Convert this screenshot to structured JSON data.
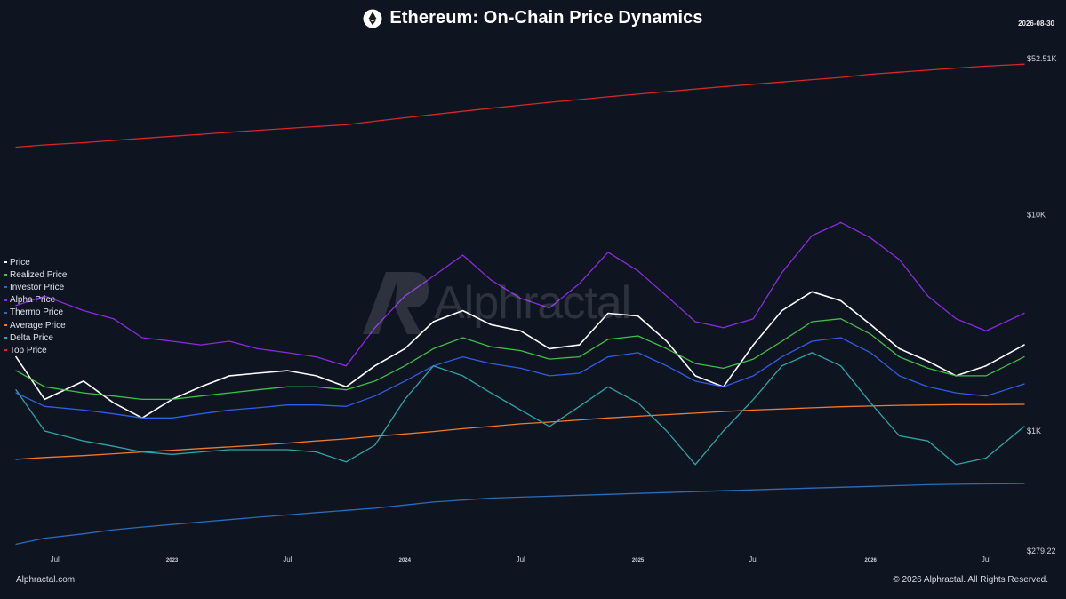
{
  "header": {
    "title": "Ethereum: On-Chain Price Dynamics",
    "date": "2026-08-30"
  },
  "watermark": "Alphractal",
  "footer": {
    "left": "Alphractal.com",
    "right": "© 2026 Alphractal. All Rights Reserved."
  },
  "legend": [
    {
      "label": "Price",
      "color": "#ffffff"
    },
    {
      "label": "Realized Price",
      "color": "#3fbf4a"
    },
    {
      "label": "Investor Price",
      "color": "#2f5fe6"
    },
    {
      "label": "Alpha Price",
      "color": "#8b2be2"
    },
    {
      "label": "Thermo Price",
      "color": "#2b6cb8"
    },
    {
      "label": "Average Price",
      "color": "#f07a2a"
    },
    {
      "label": "Delta Price",
      "color": "#2ba6a6"
    },
    {
      "label": "Top Price",
      "color": "#d62828"
    }
  ],
  "chart_data": {
    "type": "line",
    "yscale": "log",
    "ylim": [
      279.22,
      52510
    ],
    "xlim": [
      "2022-05-01",
      "2026-08-30"
    ],
    "y_ticks": [
      {
        "value": 52510,
        "label": "$52.51K"
      },
      {
        "value": 10000,
        "label": "$10K"
      },
      {
        "value": 1000,
        "label": "$1K"
      },
      {
        "value": 279.22,
        "label": "$279.22"
      }
    ],
    "x_ticks": [
      {
        "date": "2022-07-01",
        "label": "Jul"
      },
      {
        "date": "2023-01-01",
        "label": "2023"
      },
      {
        "date": "2023-07-01",
        "label": "Jul"
      },
      {
        "date": "2024-01-01",
        "label": "2024"
      },
      {
        "date": "2024-07-01",
        "label": "Jul"
      },
      {
        "date": "2025-01-01",
        "label": "2025"
      },
      {
        "date": "2025-07-01",
        "label": "Jul"
      },
      {
        "date": "2026-01-01",
        "label": "2026"
      },
      {
        "date": "2026-07-01",
        "label": "Jul"
      }
    ],
    "x_dates": [
      "2022-05-01",
      "2022-06-15",
      "2022-08-15",
      "2022-10-01",
      "2022-11-15",
      "2023-01-01",
      "2023-02-15",
      "2023-04-01",
      "2023-05-15",
      "2023-07-01",
      "2023-08-15",
      "2023-10-01",
      "2023-11-15",
      "2024-01-01",
      "2024-02-15",
      "2024-04-01",
      "2024-05-15",
      "2024-07-01",
      "2024-08-15",
      "2024-10-01",
      "2024-11-15",
      "2025-01-01",
      "2025-02-15",
      "2025-04-01",
      "2025-05-15",
      "2025-07-01",
      "2025-08-15",
      "2025-10-01",
      "2025-11-15",
      "2026-01-01",
      "2026-02-15",
      "2026-04-01",
      "2026-05-15",
      "2026-07-01",
      "2026-08-30"
    ],
    "series": [
      {
        "name": "Top Price",
        "color": "#d62828",
        "values": [
          20500,
          21000,
          21500,
          22000,
          22500,
          23000,
          23500,
          24000,
          24500,
          25000,
          25500,
          26000,
          27000,
          28000,
          29000,
          30000,
          31000,
          32000,
          33000,
          34000,
          35000,
          36000,
          37000,
          38000,
          39000,
          40000,
          41000,
          42000,
          43000,
          44500,
          45500,
          46500,
          47500,
          48500,
          49500
        ]
      },
      {
        "name": "Alpha Price",
        "color": "#8b2be2",
        "values": [
          3800,
          4200,
          3600,
          3300,
          2700,
          2600,
          2500,
          2600,
          2400,
          2300,
          2200,
          2000,
          3000,
          4200,
          5200,
          6500,
          5000,
          4100,
          3700,
          4800,
          6700,
          5500,
          4200,
          3200,
          3000,
          3300,
          5400,
          8000,
          9200,
          7800,
          6200,
          4200,
          3300,
          2900,
          3500
        ]
      },
      {
        "name": "Price",
        "color": "#ffffff",
        "values": [
          2200,
          1400,
          1700,
          1350,
          1150,
          1400,
          1600,
          1800,
          1850,
          1900,
          1800,
          1600,
          2000,
          2400,
          3200,
          3600,
          3100,
          2900,
          2400,
          2500,
          3500,
          3400,
          2600,
          1800,
          1600,
          2500,
          3600,
          4400,
          4000,
          3100,
          2400,
          2100,
          1800,
          2000,
          2500
        ]
      },
      {
        "name": "Realized Price",
        "color": "#3fbf4a",
        "values": [
          1900,
          1600,
          1500,
          1450,
          1400,
          1400,
          1450,
          1500,
          1550,
          1600,
          1600,
          1550,
          1700,
          2000,
          2400,
          2700,
          2450,
          2350,
          2150,
          2200,
          2650,
          2750,
          2400,
          2050,
          1950,
          2150,
          2600,
          3200,
          3300,
          2800,
          2200,
          1950,
          1800,
          1800,
          2200
        ]
      },
      {
        "name": "Investor Price",
        "color": "#2f5fe6",
        "values": [
          1500,
          1300,
          1250,
          1200,
          1150,
          1150,
          1200,
          1250,
          1280,
          1320,
          1320,
          1300,
          1450,
          1700,
          2000,
          2200,
          2050,
          1950,
          1800,
          1850,
          2200,
          2300,
          2000,
          1700,
          1600,
          1800,
          2200,
          2600,
          2700,
          2300,
          1800,
          1600,
          1500,
          1450,
          1650
        ]
      },
      {
        "name": "Average Price",
        "color": "#f07a2a",
        "values": [
          740,
          755,
          770,
          785,
          800,
          815,
          830,
          845,
          860,
          880,
          900,
          920,
          945,
          970,
          995,
          1025,
          1050,
          1080,
          1100,
          1125,
          1150,
          1170,
          1190,
          1210,
          1230,
          1250,
          1265,
          1280,
          1295,
          1305,
          1315,
          1320,
          1325,
          1325,
          1328
        ]
      },
      {
        "name": "Delta Price",
        "color": "#2ba6a6",
        "values": [
          1550,
          1000,
          900,
          850,
          800,
          780,
          800,
          820,
          820,
          820,
          800,
          720,
          860,
          1400,
          2000,
          1800,
          1500,
          1250,
          1050,
          1300,
          1600,
          1350,
          1000,
          700,
          1000,
          1400,
          2000,
          2300,
          2000,
          1350,
          950,
          900,
          700,
          750,
          1050
        ]
      },
      {
        "name": "Thermo Price",
        "color": "#2b6cb8",
        "values": [
          300,
          320,
          335,
          350,
          360,
          370,
          380,
          390,
          400,
          410,
          420,
          430,
          440,
          455,
          470,
          480,
          490,
          495,
          500,
          505,
          510,
          515,
          520,
          525,
          530,
          535,
          540,
          545,
          550,
          555,
          560,
          565,
          568,
          570,
          572
        ]
      }
    ]
  }
}
